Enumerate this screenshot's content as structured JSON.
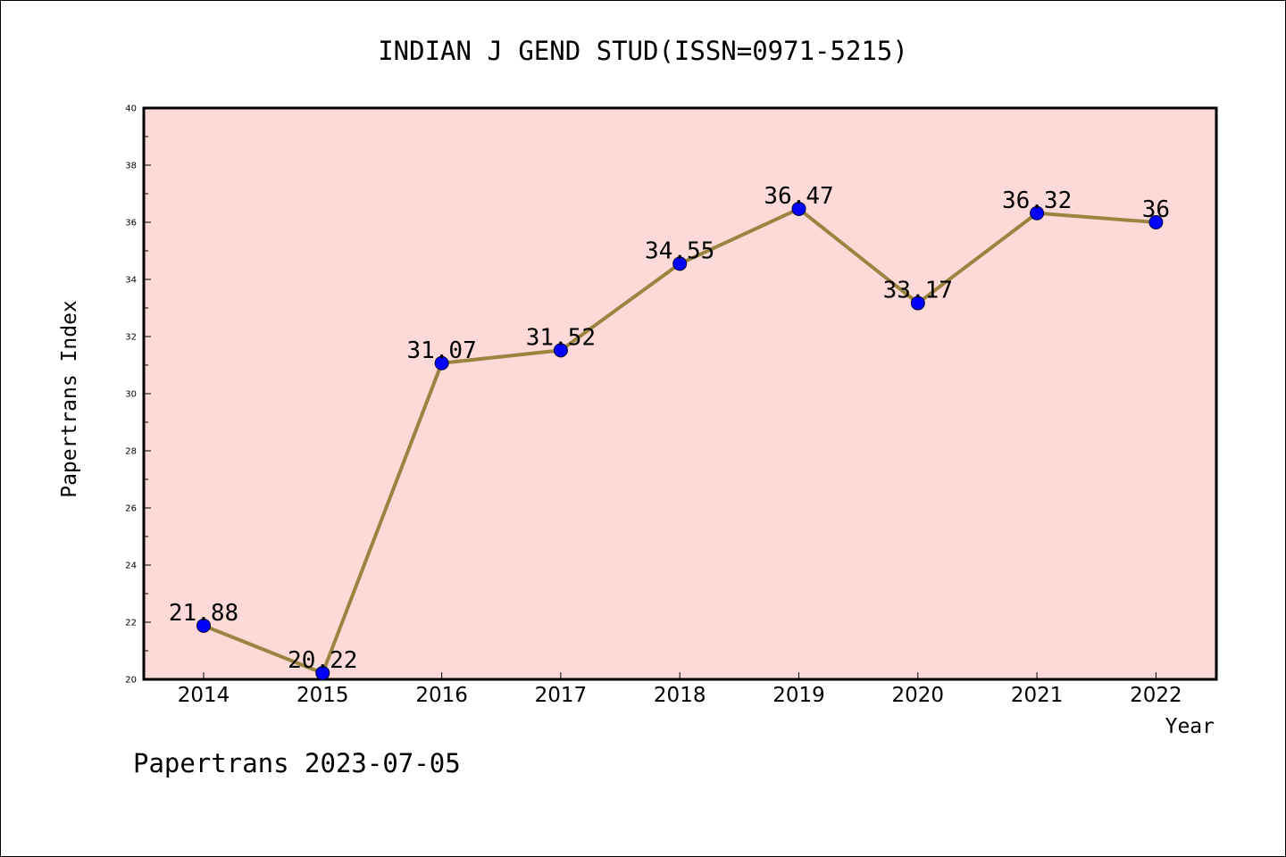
{
  "chart_data": {
    "type": "line",
    "title": "INDIAN J GEND STUD(ISSN=0971-5215)",
    "xlabel": "Year",
    "ylabel": "Papertrans Index",
    "categories": [
      "2014",
      "2015",
      "2016",
      "2017",
      "2018",
      "2019",
      "2020",
      "2021",
      "2022"
    ],
    "series": [
      {
        "values": [
          21.88,
          20.22,
          31.07,
          31.52,
          34.55,
          36.47,
          33.17,
          36.32,
          36
        ],
        "labels": [
          "21.88",
          "20.22",
          "31.07",
          "31.52",
          "34.55",
          "36.47",
          "33.17",
          "36.32",
          "36"
        ]
      }
    ],
    "ylim": [
      20,
      40
    ],
    "yticks": [
      "20",
      "22",
      "24",
      "26",
      "28",
      "30",
      "32",
      "34",
      "36",
      "38",
      "40"
    ],
    "grid": false,
    "legend": "none",
    "colors": {
      "plot_background": "#fddad8",
      "line": "#9a8440",
      "marker": "#0000ff"
    }
  },
  "footer": "Papertrans 2023-07-05"
}
